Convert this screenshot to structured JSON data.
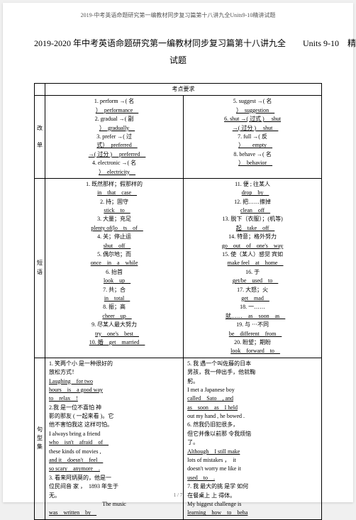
{
  "running_head": "2019-中考英语命题研究第一编教材同步复习篇第十八讲九全Units9-10精讲试题",
  "title_line1": "2019-2020 年中考英语命题研究第一编教材同步复习篇第十八讲九全　　Units 9-10　精讲",
  "title_line2": "试题",
  "header_cell": "考点要求",
  "side_label_1a": "改",
  "side_label_1b": "单",
  "side_label_2": "短语",
  "side_label_3a": "句",
  "side_label_3b": "型",
  "side_label_3c": "集",
  "footer": "1 / 7",
  "r1l1": "1. perform →( 名",
  "r1l2": "）　performance　",
  "r1l3": "2. gradual →( 副",
  "r1l4": "）　gradually　",
  "r1l5": "3. prefer →( 过",
  "r1l6": "式）　preferred　",
  "r1l6b": "→( 过分 ) 　preferred　",
  "r1l7": "4. electronic →( 名",
  "r1l8": "）　electricity　",
  "r1r1": "5. suggest →( 名",
  "r1r2": "）　suggestion　",
  "r1r3": "6. shut →( 过式 ) 　shut",
  "r1r4": "→( 过分 ) 　shut　",
  "r1r5": "7. full →( 反",
  "r1r6": "）　　empty　",
  "r1r7": "8. behave →( 名",
  "r1r8": "）　behavior　",
  "r2l1": "1. 既然那样；假那样的",
  "r2l2": "in　that　case　",
  "r2l3": "2. 持；固守",
  "r2l4": "stick　to　",
  "r2l5": "3. 大量；充足",
  "r2l6": "plenty of(lo　ts　of　",
  "r2l7": "4. 关；停止运",
  "r2l8": "shut　off　",
  "r2l9": "5. 偶尔地；而",
  "r2l10": "once　in　a　while",
  "r2l11": "6. 抬首",
  "r2l12": "look　up　",
  "r2l13": "7. 共；合",
  "r2l14": "in　total　",
  "r2l15": "8. 振；高",
  "r2l16": "cheer　up　",
  "r2l17": "9. 尽某人最大努力",
  "r2l18": "try　one's　best　",
  "r2l19": "10. 婚　get　married　",
  "r2r0": "11. 便 ; 往某人",
  "r2r1": "drop　by　",
  "r2r2": "12. 把……擦掉",
  "r2r3": "clean　off　",
  "r2r4": "13. 脱下（衣服）；(机等)",
  "r2r5": "起　take　off　",
  "r2r6": "14. 特意；格外努力",
  "r2r7": "go　out　of　one's　way",
  "r2r8": "15. 使（某人）感觉 宾如",
  "r2r9": "make feel　at　home　",
  "r2r10": "16. 于",
  "r2r11": "get/be　used　to　",
  "r2r12": "17. 大怒；火",
  "r2r13": "get　mad　",
  "r2r14": "18. 一……",
  "r2r15": "就……　as　soon　as　",
  "r2r16": "19. 与 ⋯不同",
  "r2r17": "be　different　from　",
  "r2r18": "20. 盼望；期盼",
  "r2r19": "look　forward　to　",
  "r3l1": "1. 笑两个小 是一种很好的",
  "r3l2": "放松方式！",
  "r3l3": "Laughing　for two",
  "r3l4": "hours　is　a good way",
  "r3l5": "to　relax　!",
  "r3l6": "2.我 是一位不喜怕 神",
  "r3l7": "影的那友 ( 一起来看 )。它",
  "r3l8": "他不害怕我这 这样可怕。",
  "r3l9": "I always bring a friend",
  "r3l10": "who　isn't　afraid　of　",
  "r3l11": "these kinds of movies ,",
  "r3l12": "and it　doesn't　feel　",
  "r3l13": "so scary　anymore　.",
  "r3l14": "3. 看来阿炳莫的，他是一",
  "r3l15": "位民间音 家 ，　1893 年生于",
  "r3l16": "无。",
  "r3l17": "The music",
  "r3l18": "was　written　by　",
  "r3r1": "5. 我 遇一个叫佐藤的日本",
  "r3r2": "男孩，我一伸出手，他就鞠",
  "r3r3": "躬。",
  "r3r4": "I met a Japanese boy",
  "r3r5": "called　Sato　, and",
  "r3r6": "as　soon　as　I held",
  "r3r7": "out my hand , he bowed .",
  "r3r8": "6. 然我仍旧犯很多，",
  "r3r9": "但它并像以前那 令我烦恼",
  "r3r10": "了。",
  "r3r11": "Although　I still make",
  "r3r12": "lots of mistakes ，　it",
  "r3r13": "doesn't worry me like it",
  "r3r14": "used　to　.",
  "r3r15": "7. 我 最大的挑 是学 如何",
  "r3r16": "在餐桌上 上 得体。",
  "r3r17": "My biggest challenge is",
  "r3r18": "learning　how　to　beha"
}
